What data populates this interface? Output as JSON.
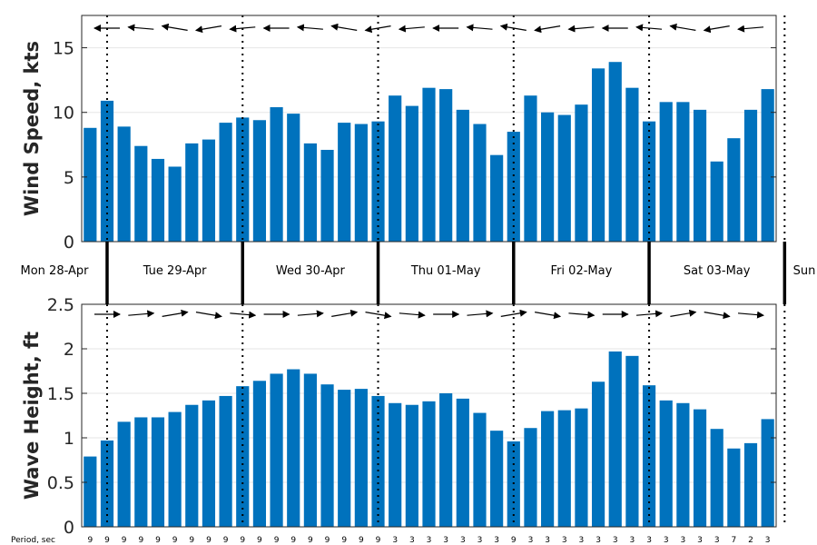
{
  "chart_data": [
    {
      "type": "bar",
      "ylabel": "Wind Speed, kts",
      "ylim": [
        0,
        17.5
      ],
      "yticks": [
        "0",
        "5",
        "10",
        "15"
      ],
      "grid": true,
      "bar_color": "#0072bd",
      "arrow_direction": "westward (from the east)",
      "values": [
        8.8,
        10.9,
        8.9,
        7.4,
        6.4,
        5.8,
        7.6,
        7.9,
        9.2,
        9.6,
        9.4,
        10.4,
        9.9,
        7.6,
        7.1,
        9.2,
        9.1,
        9.3,
        11.3,
        10.5,
        11.9,
        11.8,
        10.2,
        9.1,
        6.7,
        8.5,
        11.3,
        10.0,
        9.8,
        10.6,
        13.4,
        13.9,
        11.9,
        9.3,
        10.8,
        10.8,
        10.2,
        6.2,
        8.0,
        10.2,
        11.8
      ]
    },
    {
      "type": "bar",
      "ylabel": "Wave Height, ft",
      "ylim": [
        0,
        2.5
      ],
      "yticks": [
        "0",
        "0.5",
        "1",
        "1.5",
        "2",
        "2.5"
      ],
      "grid": true,
      "bar_color": "#0072bd",
      "arrow_direction": "eastward",
      "values": [
        0.79,
        0.97,
        1.18,
        1.23,
        1.23,
        1.29,
        1.37,
        1.42,
        1.47,
        1.58,
        1.64,
        1.72,
        1.77,
        1.72,
        1.6,
        1.54,
        1.55,
        1.47,
        1.39,
        1.37,
        1.41,
        1.5,
        1.44,
        1.28,
        1.08,
        0.96,
        1.11,
        1.3,
        1.31,
        1.33,
        1.63,
        1.97,
        1.92,
        1.59,
        1.42,
        1.39,
        1.32,
        1.1,
        0.88,
        0.94,
        1.21
      ]
    }
  ],
  "days": [
    "Mon 28-Apr",
    "Tue 29-Apr",
    "Wed 30-Apr",
    "Thu 01-May",
    "Fri 02-May",
    "Sat 03-May",
    "Sun"
  ],
  "period_label": "Period, sec",
  "periods": [
    "9",
    "9",
    "9",
    "9",
    "9",
    "9",
    "9",
    "9",
    "9",
    "9",
    "9",
    "9",
    "9",
    "9",
    "9",
    "9",
    "9",
    "9",
    "3",
    "3",
    "3",
    "3",
    "3",
    "3",
    "3",
    "9",
    "3",
    "3",
    "3",
    "3",
    "3",
    "3",
    "3",
    "3",
    "3",
    "3",
    "3",
    "3",
    "7",
    "2",
    "3"
  ]
}
